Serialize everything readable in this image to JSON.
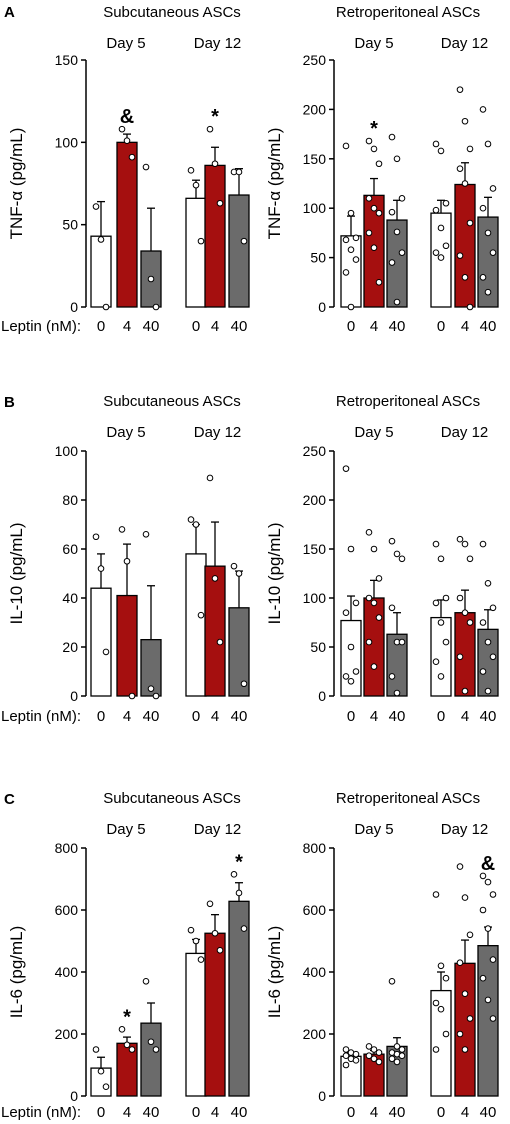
{
  "figure": {
    "leptin_label": "Leptin (nM):"
  },
  "colors": {
    "dose_0": "#ffffff",
    "dose_4": "#a50f0f",
    "dose_40": "#6b6b6b"
  },
  "chart_data": [
    {
      "id": "A-left",
      "panel_letter": "A",
      "type": "bar",
      "title": "Subcutaneous ASCs",
      "ylabel": "TNF-α (pg/mL)",
      "ylim": [
        0,
        150
      ],
      "yticks": [
        0,
        50,
        100,
        150
      ],
      "groups": [
        "Day 5",
        "Day 12"
      ],
      "categories": [
        "0",
        "4",
        "40"
      ],
      "show_leptin_label": true,
      "bars": [
        {
          "group": 0,
          "dose": "0",
          "value": 43,
          "err": 21,
          "points": [
            61,
            41,
            0
          ],
          "mark": ""
        },
        {
          "group": 0,
          "dose": "4",
          "value": 100,
          "err": 5,
          "points": [
            108,
            101,
            91
          ],
          "mark": "&"
        },
        {
          "group": 0,
          "dose": "40",
          "value": 34,
          "err": 26,
          "points": [
            85,
            17,
            0
          ],
          "mark": ""
        },
        {
          "group": 1,
          "dose": "0",
          "value": 66,
          "err": 11,
          "points": [
            83,
            74,
            40
          ],
          "mark": ""
        },
        {
          "group": 1,
          "dose": "4",
          "value": 86,
          "err": 11,
          "points": [
            108,
            87,
            63
          ],
          "mark": "*"
        },
        {
          "group": 1,
          "dose": "40",
          "value": 68,
          "err": 16,
          "points": [
            82,
            82,
            40
          ],
          "mark": ""
        }
      ]
    },
    {
      "id": "A-right",
      "panel_letter": "",
      "type": "bar",
      "title": "Retroperitoneal ASCs",
      "ylabel": "TNF-α (pg/mL)",
      "ylim": [
        0,
        250
      ],
      "yticks": [
        0,
        50,
        100,
        150,
        200,
        250
      ],
      "groups": [
        "Day 5",
        "Day 12"
      ],
      "categories": [
        "0",
        "4",
        "40"
      ],
      "show_leptin_label": false,
      "bars": [
        {
          "group": 0,
          "dose": "0",
          "value": 72,
          "err": 20,
          "points": [
            163,
            95,
            70,
            68,
            58,
            48,
            35,
            0
          ],
          "mark": ""
        },
        {
          "group": 0,
          "dose": "4",
          "value": 113,
          "err": 17,
          "points": [
            168,
            160,
            145,
            110,
            100,
            95,
            75,
            60,
            25
          ],
          "mark": "*"
        },
        {
          "group": 0,
          "dose": "40",
          "value": 88,
          "err": 20,
          "points": [
            172,
            150,
            110,
            96,
            76,
            55,
            45,
            5
          ],
          "mark": ""
        },
        {
          "group": 1,
          "dose": "0",
          "value": 95,
          "err": 13,
          "points": [
            165,
            158,
            105,
            98,
            80,
            62,
            55,
            50
          ],
          "mark": ""
        },
        {
          "group": 1,
          "dose": "4",
          "value": 124,
          "err": 22,
          "points": [
            220,
            188,
            160,
            140,
            125,
            85,
            52,
            30,
            0
          ],
          "mark": ""
        },
        {
          "group": 1,
          "dose": "40",
          "value": 91,
          "err": 20,
          "points": [
            200,
            165,
            120,
            100,
            75,
            55,
            30,
            15
          ],
          "mark": ""
        }
      ]
    },
    {
      "id": "B-left",
      "panel_letter": "B",
      "type": "bar",
      "title": "Subcutaneous ASCs",
      "ylabel": "IL-10 (pg/mL)",
      "ylim": [
        0,
        100
      ],
      "yticks": [
        0,
        20,
        40,
        60,
        80,
        100
      ],
      "groups": [
        "Day 5",
        "Day 12"
      ],
      "categories": [
        "0",
        "4",
        "40"
      ],
      "show_leptin_label": true,
      "bars": [
        {
          "group": 0,
          "dose": "0",
          "value": 44,
          "err": 14,
          "points": [
            65,
            52,
            18
          ],
          "mark": ""
        },
        {
          "group": 0,
          "dose": "4",
          "value": 41,
          "err": 21,
          "points": [
            68,
            55,
            0
          ],
          "mark": ""
        },
        {
          "group": 0,
          "dose": "40",
          "value": 23,
          "err": 22,
          "points": [
            66,
            3,
            0
          ],
          "mark": ""
        },
        {
          "group": 1,
          "dose": "0",
          "value": 58,
          "err": 12,
          "points": [
            72,
            70,
            33
          ],
          "mark": ""
        },
        {
          "group": 1,
          "dose": "4",
          "value": 53,
          "err": 18,
          "points": [
            89,
            48,
            22
          ],
          "mark": ""
        },
        {
          "group": 1,
          "dose": "40",
          "value": 36,
          "err": 15,
          "points": [
            53,
            50,
            5
          ],
          "mark": ""
        }
      ]
    },
    {
      "id": "B-right",
      "panel_letter": "",
      "type": "bar",
      "title": "Retroperitoneal ASCs",
      "ylabel": "IL-10 (pg/mL)",
      "ylim": [
        0,
        250
      ],
      "yticks": [
        0,
        50,
        100,
        150,
        200,
        250
      ],
      "groups": [
        "Day 5",
        "Day 12"
      ],
      "categories": [
        "0",
        "4",
        "40"
      ],
      "show_leptin_label": false,
      "bars": [
        {
          "group": 0,
          "dose": "0",
          "value": 77,
          "err": 25,
          "points": [
            232,
            150,
            95,
            85,
            50,
            25,
            20,
            15
          ],
          "mark": ""
        },
        {
          "group": 0,
          "dose": "4",
          "value": 100,
          "err": 18,
          "points": [
            167,
            150,
            120,
            100,
            95,
            80,
            55,
            30
          ],
          "mark": ""
        },
        {
          "group": 0,
          "dose": "40",
          "value": 63,
          "err": 22,
          "points": [
            158,
            145,
            140,
            90,
            55,
            55,
            20,
            3
          ],
          "mark": ""
        },
        {
          "group": 1,
          "dose": "0",
          "value": 80,
          "err": 18,
          "points": [
            155,
            140,
            100,
            95,
            75,
            55,
            35,
            20
          ],
          "mark": ""
        },
        {
          "group": 1,
          "dose": "4",
          "value": 85,
          "err": 23,
          "points": [
            160,
            155,
            140,
            100,
            85,
            75,
            40,
            5
          ],
          "mark": ""
        },
        {
          "group": 1,
          "dose": "40",
          "value": 68,
          "err": 20,
          "points": [
            155,
            115,
            90,
            75,
            55,
            40,
            25,
            5
          ],
          "mark": ""
        }
      ]
    },
    {
      "id": "C-left",
      "panel_letter": "C",
      "type": "bar",
      "title": "Subcutaneous ASCs",
      "ylabel": "IL-6 (pg/mL)",
      "ylim": [
        0,
        800
      ],
      "yticks": [
        0,
        200,
        400,
        600,
        800
      ],
      "groups": [
        "Day 5",
        "Day 12"
      ],
      "categories": [
        "0",
        "4",
        "40"
      ],
      "show_leptin_label": true,
      "bars": [
        {
          "group": 0,
          "dose": "0",
          "value": 90,
          "err": 35,
          "points": [
            150,
            80,
            30
          ],
          "mark": ""
        },
        {
          "group": 0,
          "dose": "4",
          "value": 170,
          "err": 20,
          "points": [
            215,
            165,
            150
          ],
          "mark": "*"
        },
        {
          "group": 0,
          "dose": "40",
          "value": 235,
          "err": 65,
          "points": [
            370,
            175,
            150
          ],
          "mark": ""
        },
        {
          "group": 1,
          "dose": "0",
          "value": 460,
          "err": 45,
          "points": [
            535,
            500,
            440
          ],
          "mark": ""
        },
        {
          "group": 1,
          "dose": "4",
          "value": 525,
          "err": 60,
          "points": [
            620,
            525,
            470
          ],
          "mark": ""
        },
        {
          "group": 1,
          "dose": "40",
          "value": 628,
          "err": 60,
          "points": [
            715,
            655,
            540
          ],
          "mark": "*"
        }
      ]
    },
    {
      "id": "C-right",
      "panel_letter": "",
      "type": "bar",
      "title": "Retroperitoneal ASCs",
      "ylabel": "IL-6 (pg/mL)",
      "ylim": [
        0,
        800
      ],
      "yticks": [
        0,
        200,
        400,
        600,
        800
      ],
      "groups": [
        "Day 5",
        "Day 12"
      ],
      "categories": [
        "0",
        "4",
        "40"
      ],
      "show_leptin_label": false,
      "bars": [
        {
          "group": 0,
          "dose": "0",
          "value": 128,
          "err": 12,
          "points": [
            150,
            140,
            135,
            130,
            120,
            115,
            100
          ],
          "mark": ""
        },
        {
          "group": 0,
          "dose": "4",
          "value": 135,
          "err": 12,
          "points": [
            160,
            150,
            140,
            130,
            120,
            110
          ],
          "mark": ""
        },
        {
          "group": 0,
          "dose": "40",
          "value": 160,
          "err": 28,
          "points": [
            370,
            160,
            150,
            140,
            135,
            130,
            120,
            110
          ],
          "mark": ""
        },
        {
          "group": 1,
          "dose": "0",
          "value": 340,
          "err": 60,
          "points": [
            650,
            420,
            380,
            300,
            280,
            200,
            150
          ],
          "mark": ""
        },
        {
          "group": 1,
          "dose": "4",
          "value": 428,
          "err": 75,
          "points": [
            740,
            640,
            520,
            430,
            330,
            250,
            200,
            150
          ],
          "mark": ""
        },
        {
          "group": 1,
          "dose": "40",
          "value": 485,
          "err": 60,
          "points": [
            710,
            690,
            650,
            600,
            540,
            440,
            380,
            310,
            250
          ],
          "mark": "&"
        }
      ]
    }
  ]
}
